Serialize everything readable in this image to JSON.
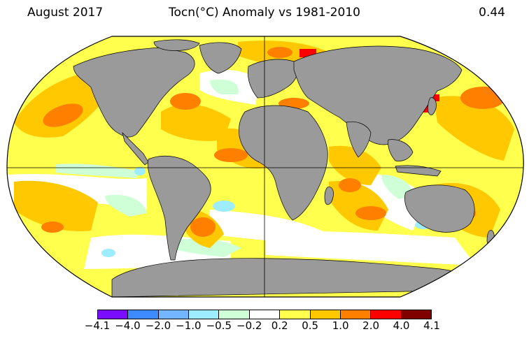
{
  "header": {
    "left": "August 2017",
    "center": "Tocn(°C) Anomaly vs 1981-2010",
    "right": "0.44"
  },
  "legend": {
    "colors": [
      "#7b0dff",
      "#3d8bff",
      "#73b6ff",
      "#9eecff",
      "#cfffd6",
      "#ffffff",
      "#ffff4d",
      "#ffc800",
      "#ff7f00",
      "#ff0000",
      "#800000"
    ],
    "labels": [
      "−4.1",
      "−4.0",
      "−2.0",
      "−1.0",
      "−0.5",
      "−0.2",
      "0.2",
      "0.5",
      "1.0",
      "2.0",
      "4.0",
      "4.1"
    ]
  },
  "colors": {
    "land": "#9a9a9a",
    "ocean_base": "#ffff4d",
    "outline": "#000000"
  }
}
